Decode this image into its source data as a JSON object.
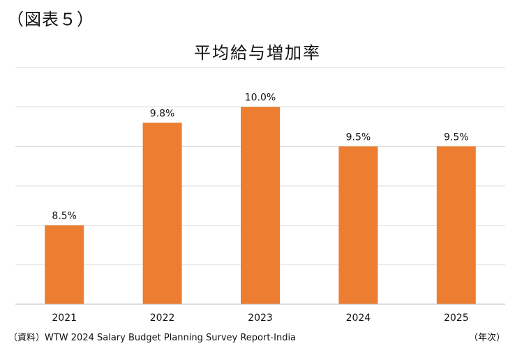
{
  "figure_label": "（図表５）",
  "source_note": "（資料）WTW 2024 Salary Budget Planning Survey Report-India",
  "unit_note": "（年次）",
  "colors": {
    "bar": "#ED7D31",
    "grid": "#D9D9D9",
    "axis": "#BFBFBF",
    "text": "#111111"
  },
  "chart_data": {
    "type": "bar",
    "title": "平均給与増加率",
    "xlabel": "",
    "ylabel": "",
    "categories": [
      "2021",
      "2022",
      "2023",
      "2024",
      "2025"
    ],
    "values": [
      8.5,
      9.8,
      10.0,
      9.5,
      9.5
    ],
    "value_labels": [
      "8.5%",
      "9.8%",
      "10.0%",
      "9.5%",
      "9.5%"
    ],
    "ylim": [
      7.5,
      10.5
    ],
    "y_gridlines": [
      7.5,
      8.0,
      8.5,
      9.0,
      9.5,
      10.0,
      10.5
    ],
    "grid": true,
    "y_tick_labels_shown": false,
    "legend": "none"
  }
}
